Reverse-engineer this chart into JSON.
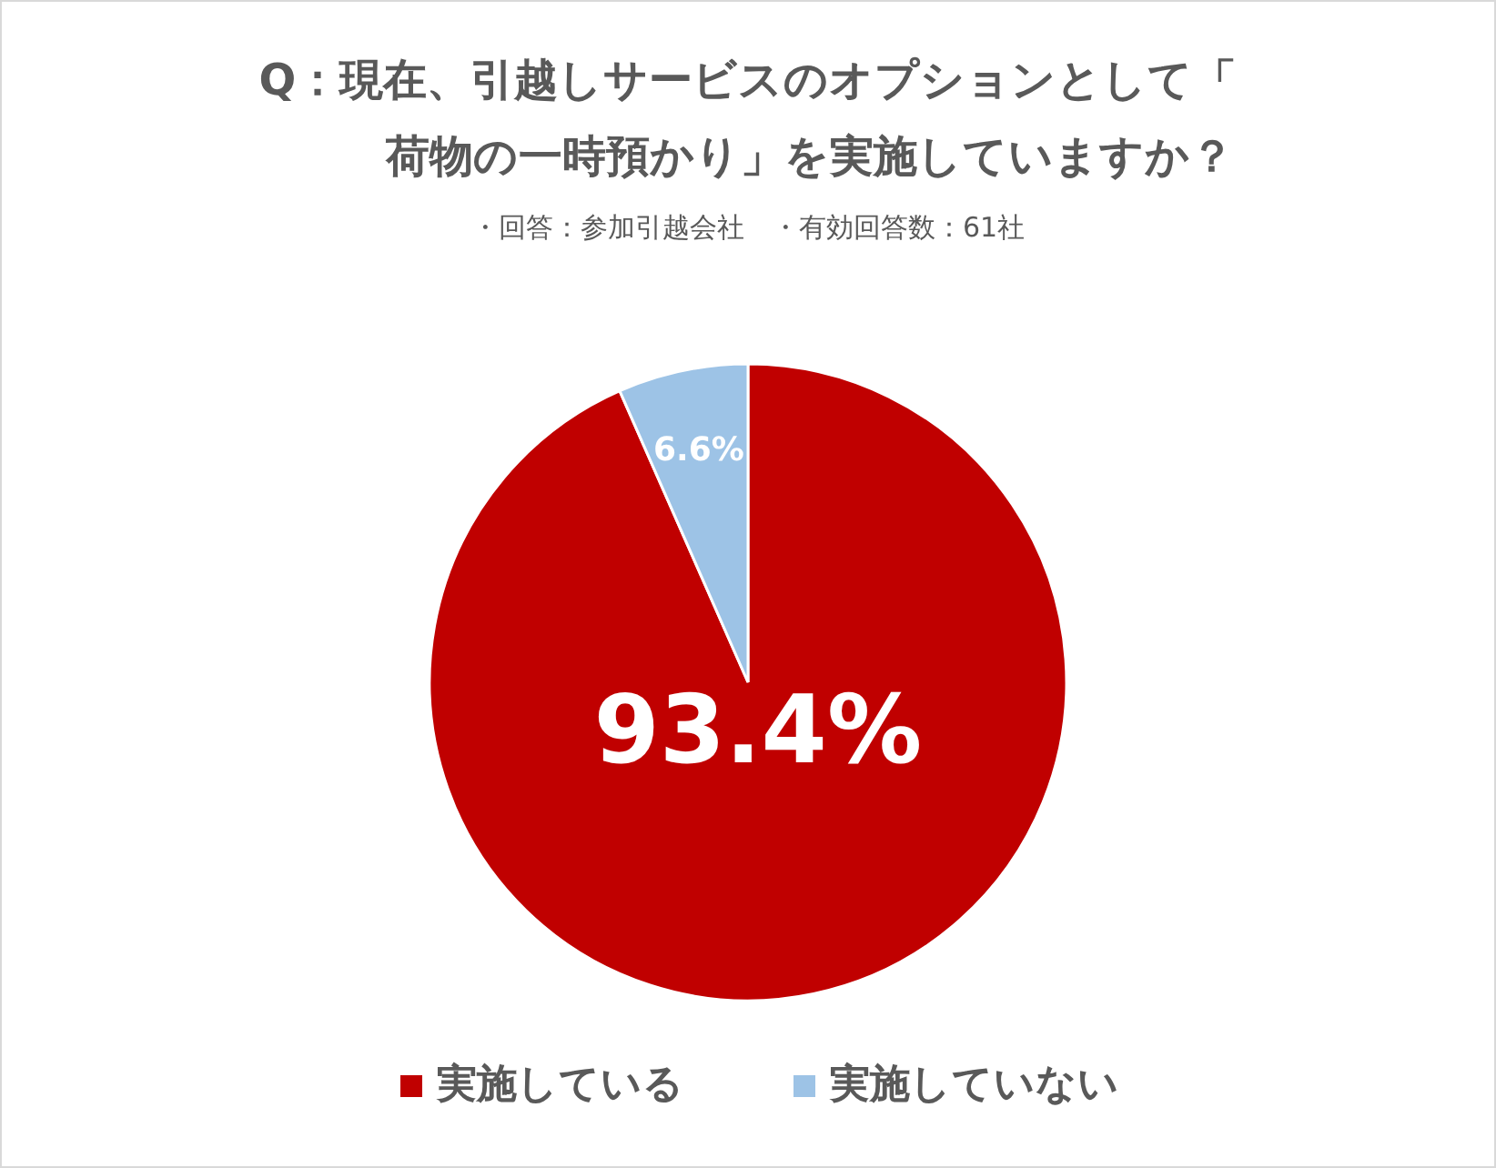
{
  "chart_data": {
    "type": "pie",
    "title": "Q：現在、引越しサービスのオプションとして「荷物の一時預かり」を実施していますか？",
    "subtitle": "・回答：参加引越会社　・有効回答数：61社",
    "categories": [
      "実施している",
      "実施していない"
    ],
    "values": [
      93.4,
      6.6
    ],
    "colors": [
      "#c00000",
      "#9dc3e6"
    ],
    "value_labels": [
      "93.4%",
      "6.6%"
    ],
    "legend": "bottom"
  }
}
